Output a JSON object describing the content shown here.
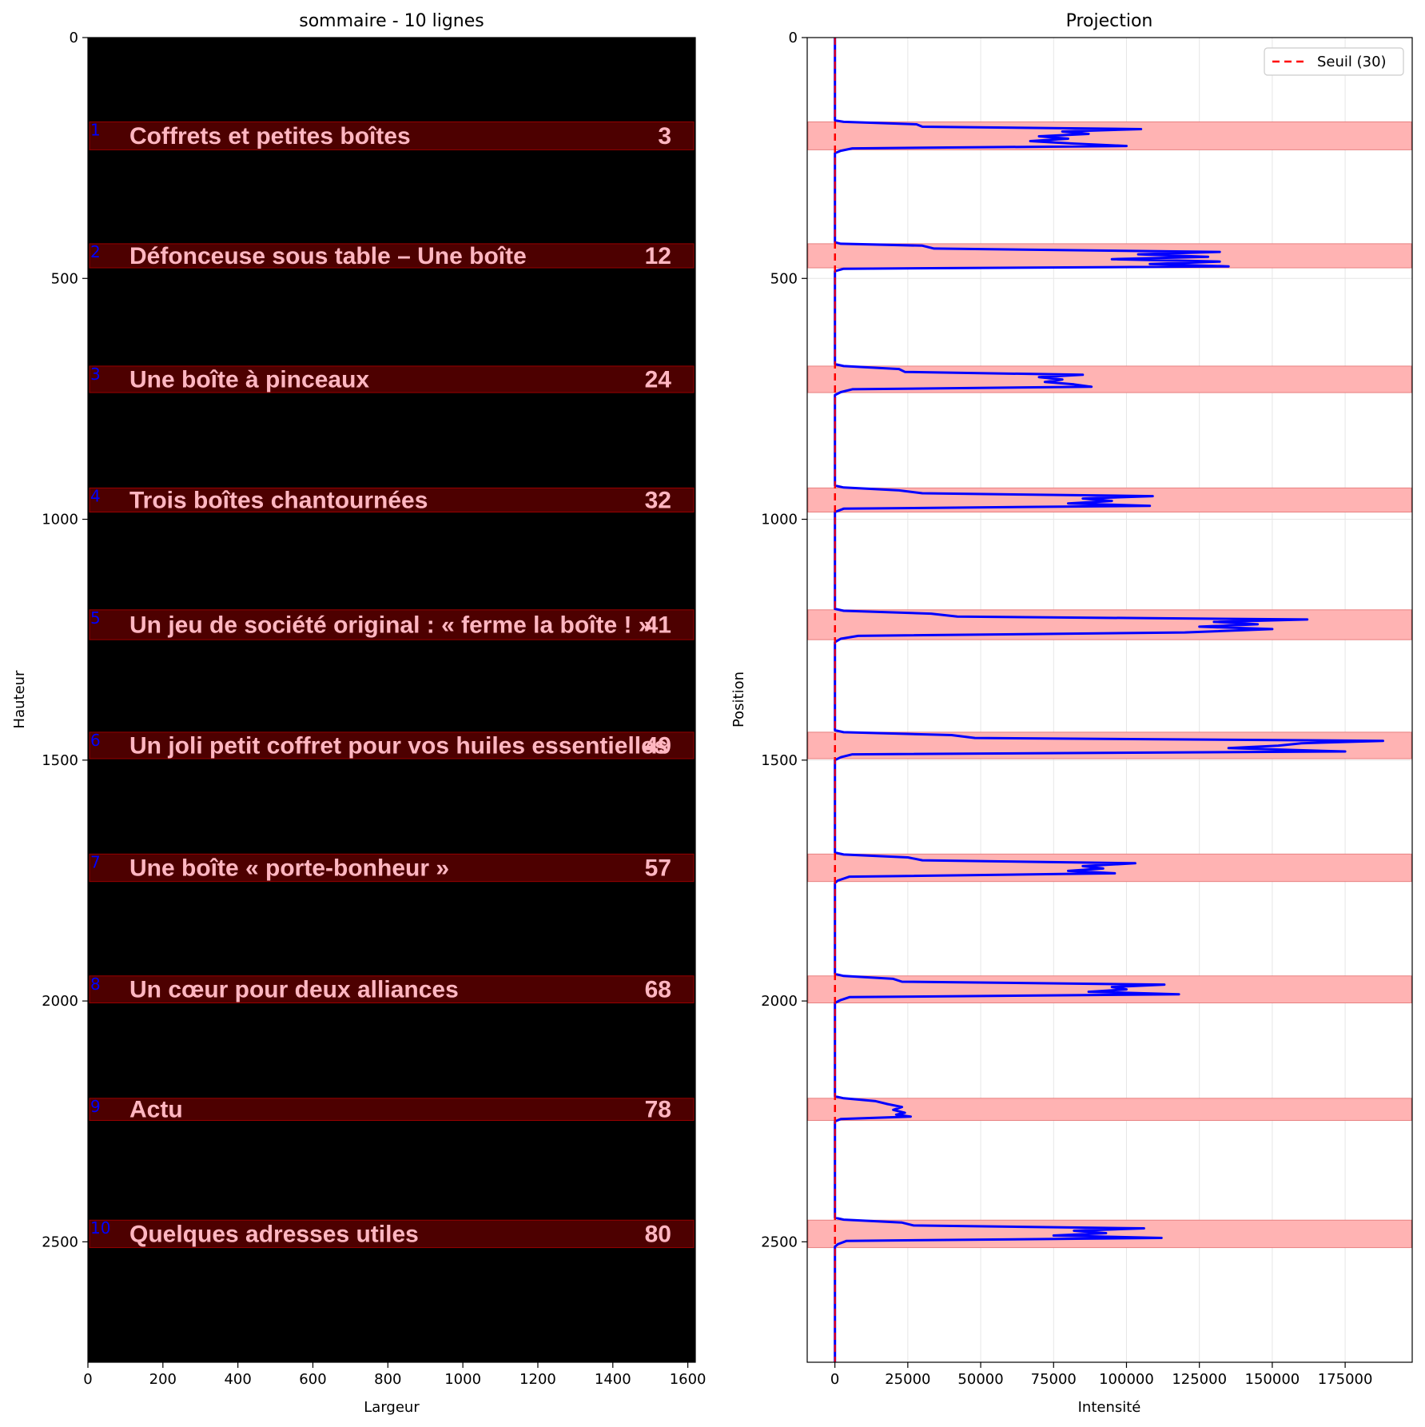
{
  "chart_data": [
    {
      "type": "image",
      "title": "sommaire - 10 lignes",
      "xlabel": "Largeur",
      "ylabel": "Hauteur",
      "xlim": [
        0,
        1620
      ],
      "ylim": [
        2750,
        0
      ],
      "xticks": [
        0,
        200,
        400,
        600,
        800,
        1000,
        1200,
        1400,
        1600
      ],
      "yticks": [
        0,
        500,
        1000,
        1500,
        2000,
        2500
      ],
      "rows": [
        {
          "n": "1",
          "text": "Coffrets et petites boîtes",
          "page": "3",
          "y0": 175,
          "y1": 233
        },
        {
          "n": "2",
          "text": "Défonceuse sous table – Une boîte",
          "page": "12",
          "y0": 428,
          "y1": 478
        },
        {
          "n": "3",
          "text": "Une boîte à pinceaux",
          "page": "24",
          "y0": 682,
          "y1": 737
        },
        {
          "n": "4",
          "text": "Trois boîtes chantournées",
          "page": "32",
          "y0": 935,
          "y1": 985
        },
        {
          "n": "5",
          "text": "Un jeu de société original : « ferme la boîte ! »",
          "page": "41",
          "y0": 1188,
          "y1": 1250
        },
        {
          "n": "6",
          "text": "Un joli petit coffret pour vos huiles essentielles",
          "page": "49",
          "y0": 1442,
          "y1": 1497
        },
        {
          "n": "7",
          "text": "Une boîte « porte-bonheur »",
          "page": "57",
          "y0": 1695,
          "y1": 1752
        },
        {
          "n": "8",
          "text": "Un cœur pour deux alliances",
          "page": "68",
          "y0": 1948,
          "y1": 2004
        },
        {
          "n": "9",
          "text": "Actu",
          "page": "78",
          "y0": 2202,
          "y1": 2248
        },
        {
          "n": "10",
          "text": "Quelques adresses utiles",
          "page": "80",
          "y0": 2455,
          "y1": 2512
        }
      ]
    },
    {
      "type": "line",
      "title": "Projection",
      "xlabel": "Intensité",
      "ylabel": "Position",
      "xlim": [
        -9500,
        198000
      ],
      "ylim": [
        2750,
        0
      ],
      "xticks": [
        0,
        25000,
        50000,
        75000,
        100000,
        125000,
        150000,
        175000
      ],
      "yticks": [
        0,
        500,
        1000,
        1500,
        2000,
        2500
      ],
      "grid": true,
      "legend": {
        "placement": "top-right",
        "entries": [
          "Seuil (30)"
        ]
      },
      "threshold": {
        "name": "Seuil (30)",
        "value": 30,
        "color": "#ff0000"
      },
      "line_color": "#0000ff",
      "band_color": "#ffb3b3",
      "series": [
        {
          "points": [
            [
              0,
              0
            ],
            [
              0,
              172
            ],
            [
              3000,
              175
            ],
            [
              28000,
              180
            ],
            [
              30000,
              185
            ],
            [
              105000,
              190
            ],
            [
              78000,
              195
            ],
            [
              87000,
              200
            ],
            [
              70000,
              205
            ],
            [
              80000,
              210
            ],
            [
              67000,
              215
            ],
            [
              82000,
              220
            ],
            [
              100000,
              225
            ],
            [
              6000,
              230
            ],
            [
              2000,
              235
            ],
            [
              0,
              240
            ],
            [
              0,
              425
            ],
            [
              2000,
              428
            ],
            [
              30000,
              432
            ],
            [
              34000,
              438
            ],
            [
              132000,
              445
            ],
            [
              104000,
              450
            ],
            [
              128000,
              455
            ],
            [
              95000,
              460
            ],
            [
              132000,
              465
            ],
            [
              108000,
              470
            ],
            [
              135000,
              475
            ],
            [
              3000,
              480
            ],
            [
              0,
              485
            ],
            [
              0,
              678
            ],
            [
              3000,
              682
            ],
            [
              22000,
              688
            ],
            [
              24000,
              694
            ],
            [
              85000,
              700
            ],
            [
              70000,
              705
            ],
            [
              78000,
              710
            ],
            [
              72000,
              715
            ],
            [
              82000,
              720
            ],
            [
              88000,
              725
            ],
            [
              6000,
              730
            ],
            [
              2000,
              736
            ],
            [
              0,
              742
            ],
            [
              0,
              930
            ],
            [
              3000,
              934
            ],
            [
              22000,
              940
            ],
            [
              30000,
              946
            ],
            [
              109000,
              952
            ],
            [
              85000,
              957
            ],
            [
              95000,
              962
            ],
            [
              80000,
              967
            ],
            [
              108000,
              972
            ],
            [
              3000,
              978
            ],
            [
              0,
              985
            ],
            [
              0,
              1186
            ],
            [
              3000,
              1190
            ],
            [
              33000,
              1196
            ],
            [
              42000,
              1202
            ],
            [
              162000,
              1208
            ],
            [
              130000,
              1213
            ],
            [
              145000,
              1218
            ],
            [
              125000,
              1223
            ],
            [
              150000,
              1228
            ],
            [
              120000,
              1235
            ],
            [
              8000,
              1242
            ],
            [
              2000,
              1248
            ],
            [
              0,
              1255
            ],
            [
              0,
              1438
            ],
            [
              3000,
              1442
            ],
            [
              40000,
              1448
            ],
            [
              48000,
              1454
            ],
            [
              188000,
              1460
            ],
            [
              160000,
              1465
            ],
            [
              152000,
              1470
            ],
            [
              135000,
              1475
            ],
            [
              175000,
              1482
            ],
            [
              6000,
              1488
            ],
            [
              2000,
              1494
            ],
            [
              0,
              1500
            ],
            [
              0,
              1692
            ],
            [
              3000,
              1696
            ],
            [
              25000,
              1702
            ],
            [
              30000,
              1708
            ],
            [
              103000,
              1714
            ],
            [
              85000,
              1720
            ],
            [
              92000,
              1725
            ],
            [
              80000,
              1730
            ],
            [
              96000,
              1735
            ],
            [
              5000,
              1742
            ],
            [
              1000,
              1750
            ],
            [
              0,
              1755
            ],
            [
              0,
              1944
            ],
            [
              3000,
              1948
            ],
            [
              20000,
              1954
            ],
            [
              23000,
              1960
            ],
            [
              113000,
              1966
            ],
            [
              95000,
              1971
            ],
            [
              100000,
              1976
            ],
            [
              87000,
              1981
            ],
            [
              118000,
              1986
            ],
            [
              5000,
              1992
            ],
            [
              2000,
              1998
            ],
            [
              0,
              2004
            ],
            [
              0,
              2198
            ],
            [
              3000,
              2202
            ],
            [
              14000,
              2208
            ],
            [
              18000,
              2214
            ],
            [
              23000,
              2220
            ],
            [
              20000,
              2226
            ],
            [
              24000,
              2232
            ],
            [
              21000,
              2236
            ],
            [
              26000,
              2240
            ],
            [
              2000,
              2245
            ],
            [
              0,
              2250
            ],
            [
              0,
              2450
            ],
            [
              3000,
              2454
            ],
            [
              23000,
              2460
            ],
            [
              27000,
              2466
            ],
            [
              106000,
              2472
            ],
            [
              82000,
              2477
            ],
            [
              93000,
              2482
            ],
            [
              75000,
              2487
            ],
            [
              112000,
              2492
            ],
            [
              4000,
              2498
            ],
            [
              1000,
              2505
            ],
            [
              0,
              2510
            ],
            [
              0,
              2750
            ]
          ]
        }
      ]
    }
  ]
}
